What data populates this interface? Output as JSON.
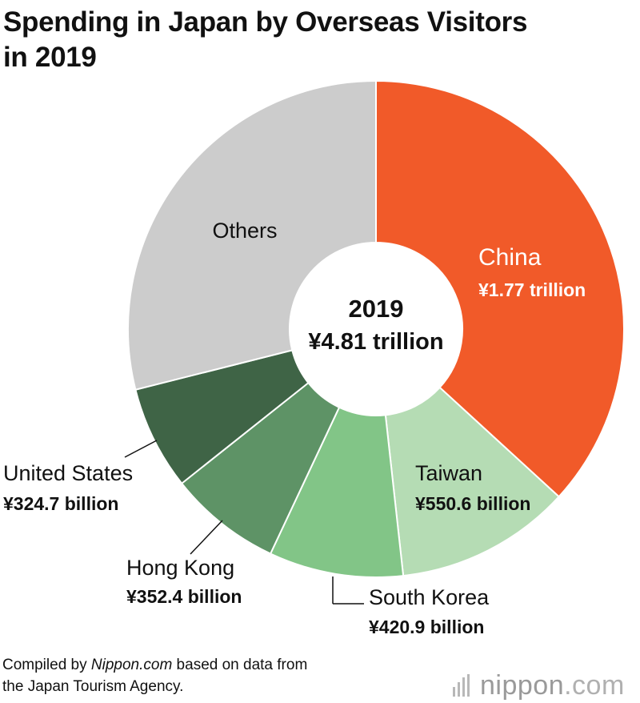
{
  "title": {
    "line1": "Spending in Japan by Overseas Visitors",
    "line2": "in 2019"
  },
  "chart_data": {
    "type": "pie",
    "center": {
      "year": "2019",
      "total": "¥4.81 trillion"
    },
    "slices": [
      {
        "name": "China",
        "value_label": "¥1.77 trillion",
        "value": 1770,
        "color": "#f15a29"
      },
      {
        "name": "Taiwan",
        "value_label": "¥550.6 billion",
        "value": 550.6,
        "color": "#b5dcb4"
      },
      {
        "name": "South Korea",
        "value_label": "¥420.9 billion",
        "value": 420.9,
        "color": "#82c587"
      },
      {
        "name": "Hong Kong",
        "value_label": "¥352.4 billion",
        "value": 352.4,
        "color": "#5e9366"
      },
      {
        "name": "United States",
        "value_label": "¥324.7 billion",
        "value": 324.7,
        "color": "#3f6446"
      },
      {
        "name": "Others",
        "value_label": "",
        "value": 1391.4,
        "color": "#cccccc"
      }
    ],
    "unit": "¥ billion"
  },
  "footer": {
    "prefix": "Compiled by ",
    "source": "Nippon.com",
    "suffix": " based on data from",
    "line2": "the Japan Tourism Agency."
  },
  "logo": {
    "name": "nippon",
    "tld": ".com"
  }
}
